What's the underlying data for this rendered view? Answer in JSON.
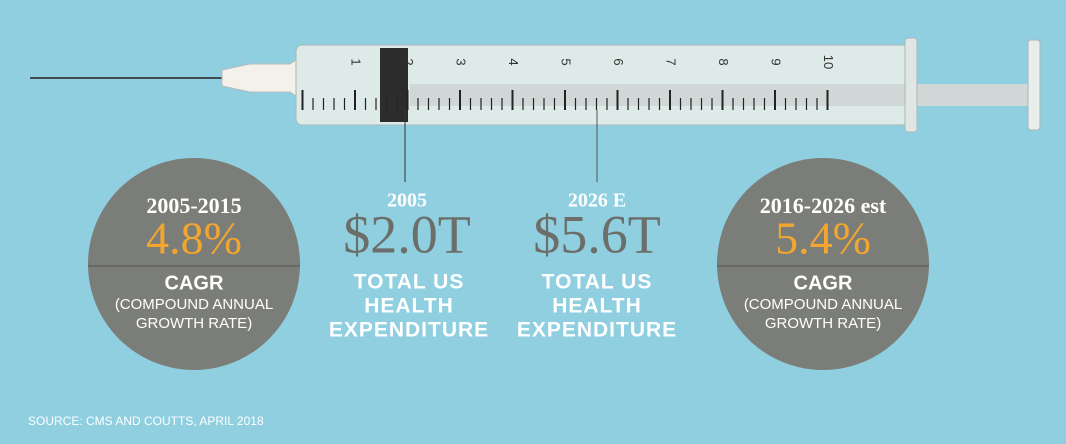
{
  "syringe": {
    "scale_labels": [
      "1",
      "2",
      "3",
      "4",
      "5",
      "6",
      "7",
      "8",
      "9",
      "10"
    ]
  },
  "left_circle": {
    "period": "2005-2015",
    "rate": "4.8%",
    "label": "CAGR",
    "description": [
      "(COMPOUND ANNUAL",
      "GROWTH RATE)"
    ]
  },
  "callout_2005": {
    "year": "2005",
    "amount": "$2.0T",
    "label": [
      "TOTAL US",
      "HEALTH",
      "EXPENDITURE"
    ]
  },
  "callout_2026": {
    "year": "2026 E",
    "amount": "$5.6T",
    "label": [
      "TOTAL US",
      "HEALTH",
      "EXPENDITURE"
    ]
  },
  "right_circle": {
    "period": "2016-2026 est",
    "rate": "5.4%",
    "label": "CAGR",
    "description": [
      "(COMPOUND ANNUAL",
      "GROWTH RATE)"
    ]
  },
  "source": "SOURCE: CMS AND COUTTS, APRIL 2018"
}
